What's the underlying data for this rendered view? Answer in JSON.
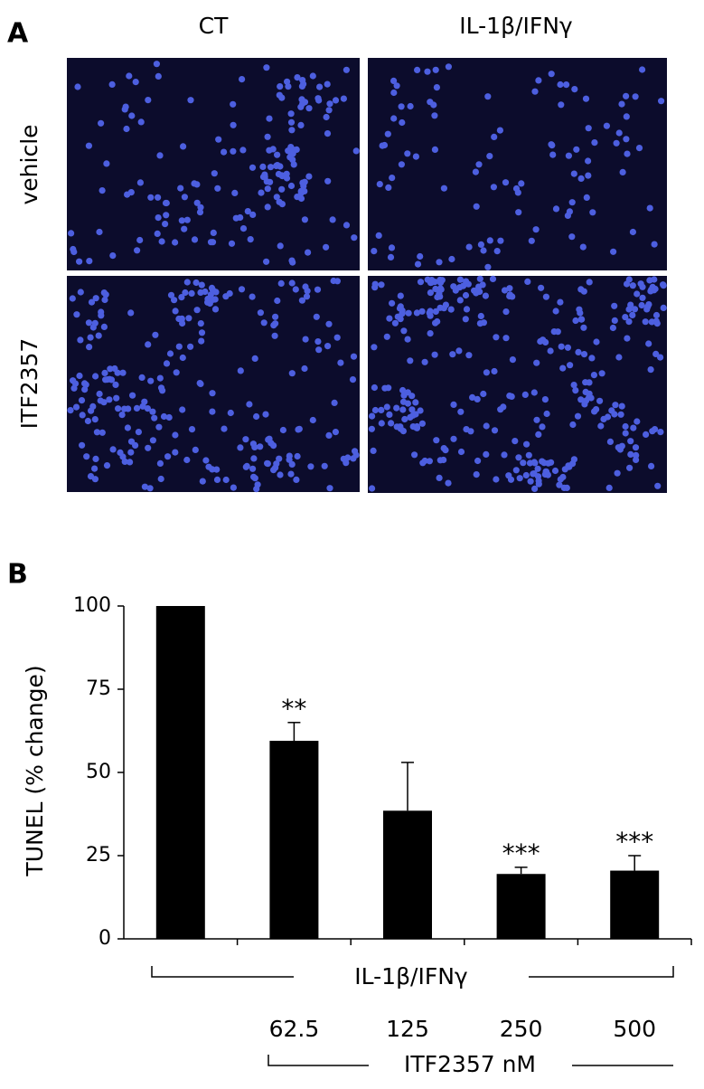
{
  "panel_a": {
    "label": "A",
    "columns": [
      "CT",
      "IL-1β/IFNγ"
    ],
    "rows": [
      "vehicle",
      "ITF2357"
    ]
  },
  "chart_data": {
    "type": "bar",
    "panel_label": "B",
    "y_label": "TUNEL (% change)",
    "categories": [
      null,
      "62.5",
      "125",
      "250",
      "500"
    ],
    "values": [
      100,
      59.5,
      38.5,
      19.5,
      20.5
    ],
    "errors": [
      null,
      5.5,
      14.5,
      2,
      4.5
    ],
    "annotations": [
      null,
      "**",
      null,
      "***",
      "***"
    ],
    "group_label": "IL-1β/IFNγ",
    "dose_label": "ITF2357 nM",
    "color": "#000000",
    "ylim": [
      0,
      100
    ],
    "yticks": [
      0,
      25,
      50,
      75,
      100
    ]
  }
}
